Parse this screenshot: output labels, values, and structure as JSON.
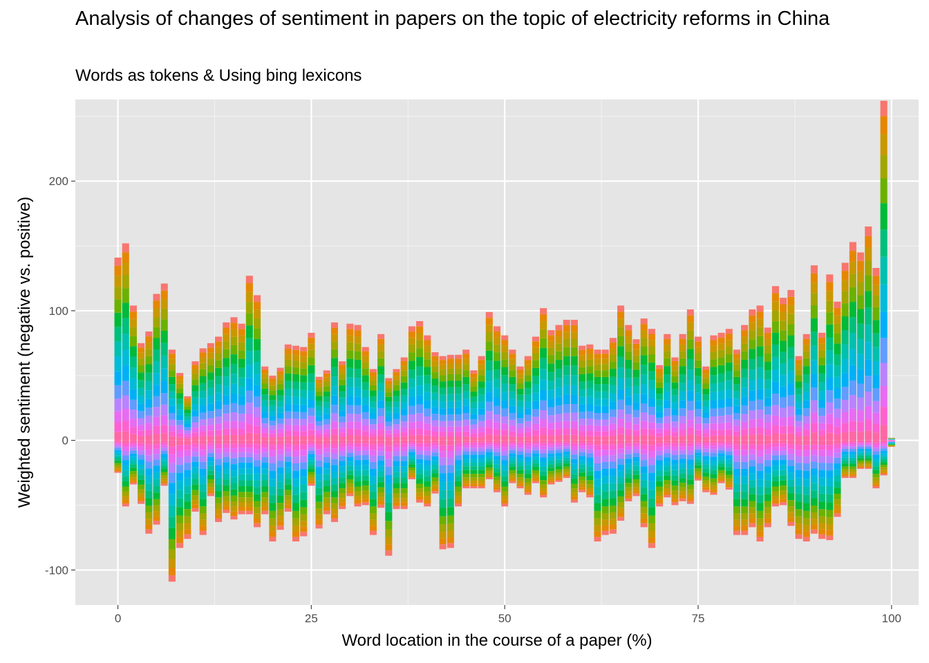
{
  "chart_data": {
    "type": "bar",
    "title": "Analysis of changes of sentiment in papers on the topic of electricity reforms in China",
    "subtitle": "Words as tokens & Using bing lexicons",
    "xlabel": "Word location in the course of a paper (%)",
    "ylabel": "Weighted sentiment (negative vs. positive)",
    "xlim": [
      -5.5,
      103.5
    ],
    "ylim": [
      -127,
      263
    ],
    "x_ticks": [
      0,
      25,
      50,
      75,
      100
    ],
    "x_tick_labels": [
      "0",
      "25",
      "50",
      "75",
      "100"
    ],
    "y_ticks": [
      -100,
      0,
      100,
      200
    ],
    "y_tick_labels": [
      "-100",
      "0",
      "100",
      "200"
    ],
    "stacked": true,
    "legend": "none",
    "grid": true,
    "panel_background": "#e5e5e5",
    "stack_palette": [
      "#F8766D",
      "#E58700",
      "#C99800",
      "#A3A500",
      "#6BB100",
      "#00BA38",
      "#00BF7D",
      "#00C0AF",
      "#00BCD8",
      "#00B0F6",
      "#619CFF",
      "#B983FF",
      "#E76BF3",
      "#FD61D1",
      "#FF67A4"
    ],
    "x": [
      0,
      1,
      2,
      3,
      4,
      5,
      6,
      7,
      8,
      9,
      10,
      11,
      12,
      13,
      14,
      15,
      16,
      17,
      18,
      19,
      20,
      21,
      22,
      23,
      24,
      25,
      26,
      27,
      28,
      29,
      30,
      31,
      32,
      33,
      34,
      35,
      36,
      37,
      38,
      39,
      40,
      41,
      42,
      43,
      44,
      45,
      46,
      47,
      48,
      49,
      50,
      51,
      52,
      53,
      54,
      55,
      56,
      57,
      58,
      59,
      60,
      61,
      62,
      63,
      64,
      65,
      66,
      67,
      68,
      69,
      70,
      71,
      72,
      73,
      74,
      75,
      76,
      77,
      78,
      79,
      80,
      81,
      82,
      83,
      84,
      85,
      86,
      87,
      88,
      89,
      90,
      91,
      92,
      93,
      94,
      95,
      96,
      97,
      98,
      99,
      100
    ],
    "positive_totals": [
      141,
      152,
      104,
      75,
      84,
      113,
      121,
      70,
      52,
      34,
      61,
      71,
      75,
      80,
      91,
      95,
      90,
      127,
      112,
      57,
      50,
      56,
      74,
      73,
      72,
      83,
      49,
      54,
      91,
      61,
      90,
      89,
      72,
      55,
      82,
      48,
      55,
      64,
      88,
      92,
      81,
      68,
      65,
      66,
      66,
      70,
      54,
      65,
      99,
      88,
      81,
      70,
      57,
      65,
      80,
      102,
      85,
      89,
      93,
      93,
      73,
      74,
      70,
      70,
      79,
      104,
      89,
      78,
      94,
      86,
      58,
      82,
      64,
      82,
      101,
      80,
      57,
      81,
      83,
      86,
      70,
      89,
      101,
      104,
      87,
      119,
      110,
      116,
      65,
      82,
      135,
      83,
      128,
      107,
      137,
      153,
      145,
      165,
      133,
      262,
      2
    ],
    "negative_totals": [
      -25,
      -51,
      -34,
      -49,
      -72,
      -65,
      -35,
      -109,
      -83,
      -76,
      -55,
      -73,
      -43,
      -63,
      -56,
      -61,
      -57,
      -57,
      -67,
      -57,
      -78,
      -69,
      -55,
      -78,
      -74,
      -35,
      -68,
      -57,
      -63,
      -53,
      -43,
      -51,
      -50,
      -73,
      -52,
      -89,
      -53,
      -53,
      -30,
      -48,
      -51,
      -41,
      -84,
      -83,
      -51,
      -37,
      -37,
      -37,
      -30,
      -40,
      -51,
      -33,
      -37,
      -42,
      -33,
      -44,
      -34,
      -32,
      -29,
      -48,
      -40,
      -44,
      -78,
      -73,
      -72,
      -62,
      -47,
      -43,
      -67,
      -83,
      -51,
      -44,
      -50,
      -47,
      -49,
      -31,
      -40,
      -42,
      -33,
      -38,
      -73,
      -73,
      -67,
      -78,
      -67,
      -51,
      -50,
      -66,
      -76,
      -78,
      -72,
      -76,
      -77,
      -59,
      -29,
      -29,
      -22,
      -22,
      -37,
      -27,
      -5
    ]
  }
}
